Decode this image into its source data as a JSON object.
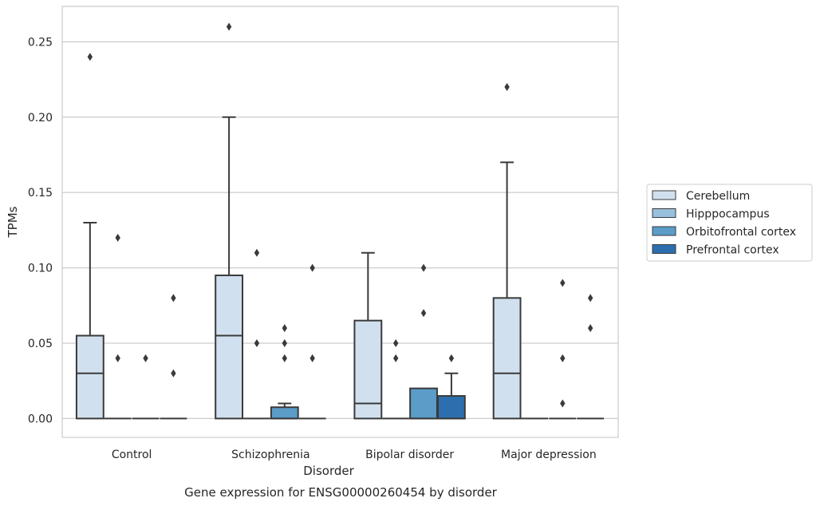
{
  "chart_data": {
    "type": "box",
    "title": "",
    "xlabel": "Disorder",
    "ylabel": "TPMs",
    "caption": "Gene expression for ENSG00000260454 by disorder",
    "ylim": [
      -0.0125,
      0.2735
    ],
    "yticks": [
      0.0,
      0.05,
      0.1,
      0.15,
      0.2,
      0.25
    ],
    "ytick_labels": [
      "0.00",
      "0.05",
      "0.10",
      "0.15",
      "0.20",
      "0.25"
    ],
    "grid": "horizontal",
    "legend_position": "right",
    "categories": [
      "Control",
      "Schizophrenia",
      "Bipolar disorder",
      "Major depression"
    ],
    "series": [
      {
        "name": "Cerebellum",
        "color": "#d1e0ef",
        "boxes": [
          {
            "q1": 0.0,
            "median": 0.03,
            "q3": 0.055,
            "whislo": 0.0,
            "whishi": 0.13,
            "fliers": [
              0.24
            ]
          },
          {
            "q1": 0.0,
            "median": 0.055,
            "q3": 0.095,
            "whislo": 0.0,
            "whishi": 0.2,
            "fliers": [
              0.26
            ]
          },
          {
            "q1": 0.0,
            "median": 0.01,
            "q3": 0.065,
            "whislo": 0.0,
            "whishi": 0.11,
            "fliers": []
          },
          {
            "q1": 0.0,
            "median": 0.03,
            "q3": 0.08,
            "whislo": 0.0,
            "whishi": 0.17,
            "fliers": [
              0.22
            ]
          }
        ]
      },
      {
        "name": "Hipppocampus",
        "color": "#98c0dd",
        "boxes": [
          {
            "q1": 0.0,
            "median": 0.0,
            "q3": 0.0,
            "whislo": 0.0,
            "whishi": 0.0,
            "fliers": [
              0.12,
              0.04
            ]
          },
          {
            "q1": 0.0,
            "median": 0.0,
            "q3": 0.0,
            "whislo": 0.0,
            "whishi": 0.0,
            "fliers": [
              0.11,
              0.05
            ]
          },
          {
            "q1": 0.0,
            "median": 0.0,
            "q3": 0.0,
            "whislo": 0.0,
            "whishi": 0.0,
            "fliers": [
              0.05,
              0.04
            ]
          },
          {
            "q1": 0.0,
            "median": 0.0,
            "q3": 0.0,
            "whislo": 0.0,
            "whishi": 0.0,
            "fliers": []
          }
        ]
      },
      {
        "name": "Orbitofrontal cortex",
        "color": "#5b9cc8",
        "boxes": [
          {
            "q1": 0.0,
            "median": 0.0,
            "q3": 0.0,
            "whislo": 0.0,
            "whishi": 0.0,
            "fliers": [
              0.04
            ]
          },
          {
            "q1": 0.0,
            "median": 0.0,
            "q3": 0.0075,
            "whislo": 0.0,
            "whishi": 0.01,
            "fliers": [
              0.06,
              0.05,
              0.04
            ]
          },
          {
            "q1": 0.0,
            "median": 0.0,
            "q3": 0.02,
            "whislo": 0.0,
            "whishi": 0.02,
            "fliers": [
              0.1,
              0.07
            ]
          },
          {
            "q1": 0.0,
            "median": 0.0,
            "q3": 0.0,
            "whislo": 0.0,
            "whishi": 0.0,
            "fliers": [
              0.09,
              0.04,
              0.01
            ]
          }
        ]
      },
      {
        "name": "Prefrontal cortex",
        "color": "#2d6fae",
        "boxes": [
          {
            "q1": 0.0,
            "median": 0.0,
            "q3": 0.0,
            "whislo": 0.0,
            "whishi": 0.0,
            "fliers": [
              0.08,
              0.03
            ]
          },
          {
            "q1": 0.0,
            "median": 0.0,
            "q3": 0.0,
            "whislo": 0.0,
            "whishi": 0.0,
            "fliers": [
              0.1,
              0.04
            ]
          },
          {
            "q1": 0.0,
            "median": 0.0,
            "q3": 0.015,
            "whislo": 0.0,
            "whishi": 0.03,
            "fliers": [
              0.04
            ]
          },
          {
            "q1": 0.0,
            "median": 0.0,
            "q3": 0.0,
            "whislo": 0.0,
            "whishi": 0.0,
            "fliers": [
              0.08,
              0.06
            ]
          }
        ]
      }
    ]
  }
}
